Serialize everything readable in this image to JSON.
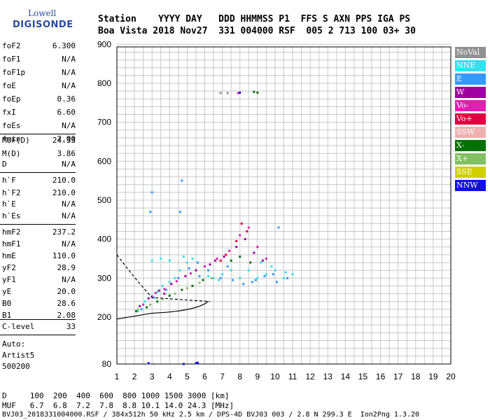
{
  "logo": {
    "line1": "Lowell",
    "line2": "DIGISONDE"
  },
  "header": {
    "row1": "Station    YYYY DAY   DDD HHMMSS P1  FFS S AXN PPS IGA PS",
    "row2": "Boa Vista 2018 Nov27  331 004000 RSF  005 2 713 100 03+ 30"
  },
  "params_group1": [
    {
      "label": "foF2",
      "value": "6.300"
    },
    {
      "label": "foF1",
      "value": "N/A"
    },
    {
      "label": "foF1p",
      "value": "N/A"
    },
    {
      "label": "foE",
      "value": "N/A"
    },
    {
      "label": "foEp",
      "value": "0.36"
    },
    {
      "label": "fxI",
      "value": "6.60"
    },
    {
      "label": "foEs",
      "value": "N/A"
    },
    {
      "label": "fmin",
      "value": "2.00"
    }
  ],
  "params_group2": [
    {
      "label": "MUF(D)",
      "value": "24.33"
    },
    {
      "label": "M(D)",
      "value": "3.86"
    },
    {
      "label": "D",
      "value": "N/A"
    }
  ],
  "params_group3": [
    {
      "label": "h`F",
      "value": "210.0"
    },
    {
      "label": "h`F2",
      "value": "210.0"
    },
    {
      "label": "h`E",
      "value": "N/A"
    },
    {
      "label": "h`Es",
      "value": "N/A"
    }
  ],
  "params_group4": [
    {
      "label": "hmF2",
      "value": "237.2"
    },
    {
      "label": "hmF1",
      "value": "N/A"
    },
    {
      "label": "hmE",
      "value": "110.0"
    },
    {
      "label": "yF2",
      "value": "28.9"
    },
    {
      "label": "yF1",
      "value": "N/A"
    },
    {
      "label": "yE",
      "value": "20.0"
    },
    {
      "label": "B0",
      "value": "28.6"
    },
    {
      "label": "B1",
      "value": "2.08"
    }
  ],
  "params_group5": [
    {
      "label": "C-level",
      "value": "33"
    }
  ],
  "auto": {
    "line1": "Auto:",
    "line2": "Artist5",
    "line3": "500200"
  },
  "legend": [
    {
      "label": "NoVal",
      "color": "#909090"
    },
    {
      "label": "NNE",
      "color": "#33e0f0"
    },
    {
      "label": "E",
      "color": "#3399ff"
    },
    {
      "label": "W",
      "color": "#a000a0"
    },
    {
      "label": "Vo-",
      "color": "#e020b0"
    },
    {
      "label": "Vo+",
      "color": "#e00040"
    },
    {
      "label": "SSW",
      "color": "#f0b0b0"
    },
    {
      "label": "X-",
      "color": "#007000"
    },
    {
      "label": "X+",
      "color": "#80c060"
    },
    {
      "label": "SSE",
      "color": "#d0d000"
    },
    {
      "label": "NNW",
      "color": "#1010e0"
    }
  ],
  "footer": {
    "d_row": "D     100  200  400  600  800 1000 1500 3000 [km]",
    "muf_row": "MUF   6.7  6.8  7.2  7.8  8.8 10.1 14.0 24.3 [MHz]",
    "info_row": "BVJ03_2018331004000.RSF / 384x512h 50 kHz 2.5 km / DPS-4D BVJ03 003 / 2.8 N 299.3 E  Ion2Png 1.3.20"
  },
  "chart_data": {
    "type": "scatter",
    "title": "",
    "xlabel": "",
    "ylabel": "",
    "xlim": [
      1,
      20
    ],
    "ylim": [
      80,
      900
    ],
    "x_ticks": [
      1,
      2,
      3,
      4,
      5,
      6,
      7,
      8,
      9,
      10,
      11,
      12,
      13,
      14,
      15,
      16,
      17,
      18,
      19,
      20
    ],
    "y_ticks": [
      80,
      200,
      300,
      400,
      500,
      600,
      700,
      800,
      900
    ],
    "grid": true,
    "series": [
      {
        "name": "NNE",
        "color": "#33e0f0",
        "points": [
          [
            2.2,
            215
          ],
          [
            2.6,
            240
          ],
          [
            3.0,
            255
          ],
          [
            3.3,
            265
          ],
          [
            3.6,
            280
          ],
          [
            4.0,
            290
          ],
          [
            4.3,
            300
          ],
          [
            4.6,
            320
          ],
          [
            5.0,
            340
          ],
          [
            5.3,
            350
          ],
          [
            6.0,
            330
          ],
          [
            6.5,
            300
          ],
          [
            7.0,
            310
          ],
          [
            7.5,
            320
          ],
          [
            8.0,
            300
          ],
          [
            8.5,
            320
          ],
          [
            9.0,
            300
          ],
          [
            9.5,
            310
          ],
          [
            10.0,
            320
          ],
          [
            10.5,
            300
          ],
          [
            11.0,
            310
          ],
          [
            3.0,
            345
          ],
          [
            3.5,
            350
          ],
          [
            4.0,
            345
          ],
          [
            4.8,
            355
          ],
          [
            6.2,
            305
          ],
          [
            6.8,
            295
          ],
          [
            9.2,
            340
          ],
          [
            9.8,
            330
          ],
          [
            10.6,
            315
          ]
        ]
      },
      {
        "name": "E",
        "color": "#3399ff",
        "points": [
          [
            2.4,
            220
          ],
          [
            3.1,
            250
          ],
          [
            3.8,
            270
          ],
          [
            4.5,
            300
          ],
          [
            5.1,
            325
          ],
          [
            5.6,
            340
          ],
          [
            6.2,
            320
          ],
          [
            6.9,
            300
          ],
          [
            7.6,
            295
          ],
          [
            8.2,
            285
          ],
          [
            8.9,
            295
          ],
          [
            9.4,
            305
          ],
          [
            10.1,
            290
          ],
          [
            10.7,
            300
          ],
          [
            2.9,
            470
          ],
          [
            3.0,
            520
          ],
          [
            4.7,
            550
          ],
          [
            4.6,
            470
          ],
          [
            5.7,
            305
          ],
          [
            7.3,
            330
          ],
          [
            8.7,
            290
          ],
          [
            9.9,
            310
          ],
          [
            10.2,
            430
          ]
        ]
      },
      {
        "name": "W",
        "color": "#a000a0",
        "points": [
          [
            2.3,
            228
          ],
          [
            2.8,
            248
          ],
          [
            3.4,
            268
          ],
          [
            4.1,
            285
          ],
          [
            4.9,
            305
          ],
          [
            5.5,
            320
          ],
          [
            6.3,
            335
          ],
          [
            7.1,
            355
          ],
          [
            7.8,
            380
          ],
          [
            8.3,
            400
          ],
          [
            8.8,
            365
          ],
          [
            9.3,
            345
          ],
          [
            3.7,
            260
          ],
          [
            6.6,
            345
          ]
        ]
      },
      {
        "name": "Vo-",
        "color": "#e020b0",
        "points": [
          [
            2.5,
            232
          ],
          [
            3.0,
            252
          ],
          [
            3.7,
            272
          ],
          [
            4.4,
            292
          ],
          [
            5.2,
            312
          ],
          [
            6.0,
            330
          ],
          [
            6.7,
            350
          ],
          [
            7.4,
            370
          ],
          [
            8.0,
            410
          ],
          [
            8.5,
            430
          ],
          [
            9.0,
            380
          ],
          [
            9.5,
            350
          ],
          [
            7.9,
            775
          ],
          [
            3.2,
            262
          ]
        ]
      },
      {
        "name": "Vo+",
        "color": "#e00040",
        "points": [
          [
            7.2,
            360
          ],
          [
            7.8,
            395
          ],
          [
            8.1,
            440
          ],
          [
            8.4,
            420
          ],
          [
            6.9,
            345
          ]
        ]
      },
      {
        "name": "X-",
        "color": "#007000",
        "points": [
          [
            2.1,
            215
          ],
          [
            2.7,
            225
          ],
          [
            3.3,
            240
          ],
          [
            4.0,
            255
          ],
          [
            4.7,
            270
          ],
          [
            5.3,
            280
          ],
          [
            5.9,
            295
          ],
          [
            7.5,
            345
          ],
          [
            8.0,
            355
          ],
          [
            8.6,
            340
          ],
          [
            8.8,
            778
          ],
          [
            9.0,
            776
          ]
        ]
      },
      {
        "name": "X+",
        "color": "#80c060",
        "points": [
          [
            2.2,
            220
          ],
          [
            2.9,
            232
          ],
          [
            3.6,
            246
          ],
          [
            4.3,
            260
          ],
          [
            5.0,
            274
          ],
          [
            5.7,
            288
          ],
          [
            6.4,
            300
          ]
        ]
      },
      {
        "name": "NoVal",
        "color": "#909090",
        "points": [
          [
            6.9,
            775
          ],
          [
            7.3,
            775
          ],
          [
            2.6,
            80
          ],
          [
            3.1,
            80
          ]
        ]
      },
      {
        "name": "NNW",
        "color": "#1010e0",
        "points": [
          [
            4.8,
            80
          ],
          [
            5.5,
            82
          ],
          [
            5.6,
            83
          ],
          [
            8.0,
            776
          ],
          [
            2.8,
            82
          ]
        ]
      }
    ]
  }
}
